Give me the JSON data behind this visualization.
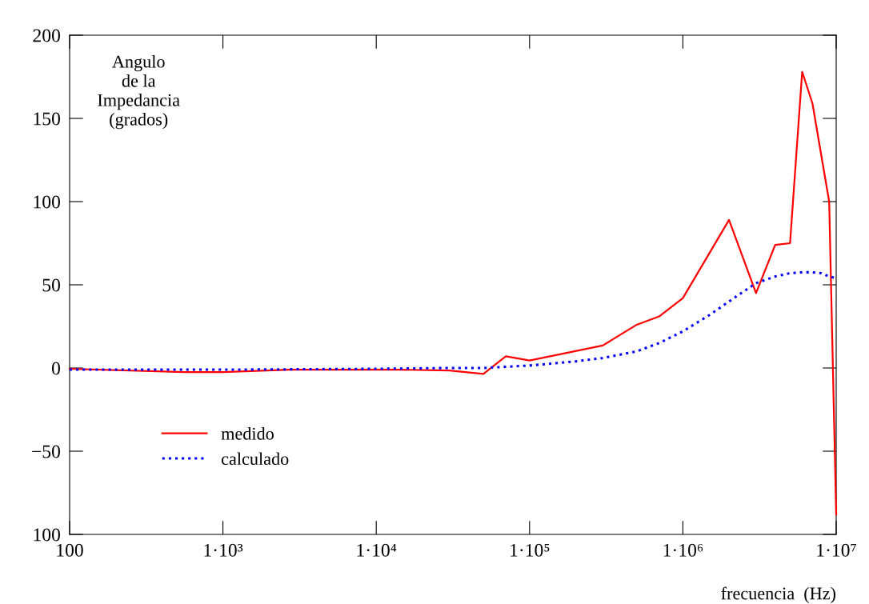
{
  "chart_data": {
    "type": "line",
    "ylabel": "Angulo\nde la\nImpedancia\n(grados)",
    "xlabel": "frecuencia  (Hz)",
    "log": "x",
    "grid": false,
    "legend": "bottom left",
    "marker": "none",
    "xlim": [
      100,
      10000000
    ],
    "ylim": [
      -100,
      200
    ],
    "xticks": [
      {
        "value": 100,
        "label": "100"
      },
      {
        "value": 1000,
        "label": "1·10³"
      },
      {
        "value": 10000,
        "label": "1·10⁴"
      },
      {
        "value": 100000,
        "label": "1·10⁵"
      },
      {
        "value": 1000000,
        "label": "1·10⁶"
      },
      {
        "value": 10000000,
        "label": "1·10⁷"
      }
    ],
    "yticks": [
      {
        "value": -100,
        "label": "100"
      },
      {
        "value": -50,
        "label": "−50"
      },
      0,
      50,
      100,
      150,
      200
    ],
    "series": [
      {
        "name": "medido",
        "color": "#ff0000",
        "line_style": "solid",
        "x": [
          100,
          560,
          1000,
          2700,
          14000,
          30000,
          50000,
          70000,
          100000,
          300000,
          500000,
          700000,
          1000000,
          2000000,
          3000000,
          4000000,
          5000000,
          6000000,
          7000000,
          9000000,
          10000000
        ],
        "values": [
          -0.5,
          -2.5,
          -2.5,
          -1,
          -1,
          -1.5,
          -3.5,
          7,
          4.5,
          13.5,
          26,
          31,
          42,
          89,
          45,
          74,
          75,
          178,
          159,
          100,
          -88
        ]
      },
      {
        "name": "calculado",
        "color": "#0000ff",
        "line_style": "dotted",
        "x": [
          100,
          1000,
          10000,
          30000,
          50000,
          100000,
          200000,
          300000,
          500000,
          700000,
          1000000,
          1500000,
          2000000,
          3000000,
          4000000,
          5000000,
          6000000,
          7000000,
          8000000,
          9000000,
          10000000
        ],
        "values": [
          -1,
          -1,
          -0.5,
          0,
          0,
          1.5,
          4,
          6,
          10,
          15,
          22,
          32,
          40,
          51,
          55,
          57,
          57.5,
          57.5,
          57,
          55,
          54
        ]
      }
    ]
  }
}
